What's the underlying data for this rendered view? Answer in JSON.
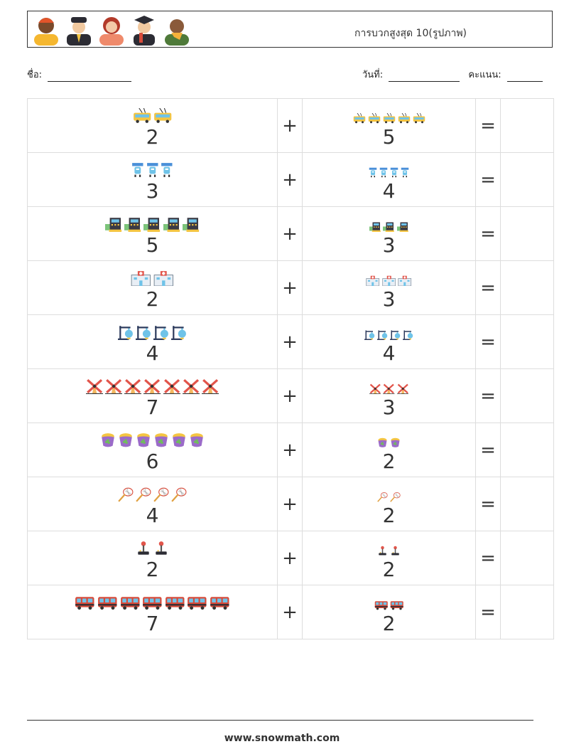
{
  "title": "การบวกสูงสุด 10(รูปภาพ)",
  "avatars": [
    "person-orange-icon",
    "pilot-icon",
    "woman-icon",
    "graduate-icon",
    "man-scarf-icon"
  ],
  "name_label": "ชื่อ:",
  "date_label": "วันที่:",
  "score_label": "คะแนน:",
  "operators": {
    "plus": "+",
    "equals": "="
  },
  "problems": [
    {
      "a": 2,
      "b": 5,
      "icon": "trolleybus-icon",
      "a_text": "2",
      "b_text": "5"
    },
    {
      "a": 3,
      "b": 4,
      "icon": "robot-icon",
      "a_text": "3",
      "b_text": "4"
    },
    {
      "a": 5,
      "b": 3,
      "icon": "cash-register-icon",
      "a_text": "5",
      "b_text": "3"
    },
    {
      "a": 2,
      "b": 3,
      "icon": "hospital-icon",
      "a_text": "2",
      "b_text": "3"
    },
    {
      "a": 4,
      "b": 4,
      "icon": "lab-flask-stand-icon",
      "a_text": "4",
      "b_text": "4"
    },
    {
      "a": 7,
      "b": 3,
      "icon": "windmill-icon",
      "a_text": "7",
      "b_text": "3"
    },
    {
      "a": 6,
      "b": 2,
      "icon": "pot-of-gold-icon",
      "a_text": "6",
      "b_text": "2"
    },
    {
      "a": 4,
      "b": 2,
      "icon": "butterfly-net-icon",
      "a_text": "4",
      "b_text": "2"
    },
    {
      "a": 2,
      "b": 2,
      "icon": "joystick-icon",
      "a_text": "2",
      "b_text": "2"
    },
    {
      "a": 7,
      "b": 2,
      "icon": "bus-icon",
      "a_text": "7",
      "b_text": "2"
    }
  ],
  "footer": "www.snowmath.com"
}
